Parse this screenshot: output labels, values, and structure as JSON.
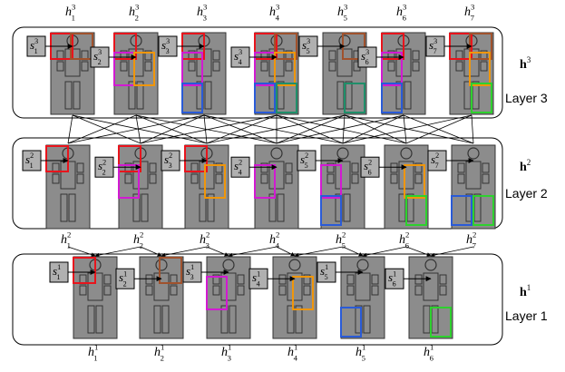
{
  "diagram": {
    "layers": [
      {
        "label": "Layer 3",
        "h_label": "h",
        "h_sup": "3",
        "nodes": [
          {
            "h": "h",
            "sub": "1",
            "sup": "3",
            "s": "s",
            "s_sub": "1",
            "s_sup": "3",
            "boxes": [
              "red",
              "brown"
            ]
          },
          {
            "h": "h",
            "sub": "2",
            "sup": "3",
            "s": "s",
            "s_sub": "2",
            "s_sup": "3",
            "boxes": [
              "red",
              "magenta",
              "orange"
            ]
          },
          {
            "h": "h",
            "sub": "3",
            "sup": "3",
            "s": "s",
            "s_sub": "3",
            "s_sup": "3",
            "boxes": [
              "red",
              "magenta",
              "blue"
            ]
          },
          {
            "h": "h",
            "sub": "4",
            "sup": "3",
            "s": "s",
            "s_sub": "4",
            "s_sup": "3",
            "boxes": [
              "red",
              "brown",
              "magenta",
              "orange",
              "blue",
              "teal"
            ]
          },
          {
            "h": "h",
            "sub": "5",
            "sup": "3",
            "s": "s",
            "s_sub": "5",
            "s_sup": "3",
            "boxes": [
              "brown",
              "teal"
            ]
          },
          {
            "h": "h",
            "sub": "6",
            "sup": "3",
            "s": "s",
            "s_sub": "6",
            "s_sup": "3",
            "boxes": [
              "red",
              "magenta",
              "blue"
            ]
          },
          {
            "h": "h",
            "sub": "7",
            "sup": "3",
            "s": "s",
            "s_sub": "7",
            "s_sup": "3",
            "boxes": [
              "red",
              "brown",
              "orange",
              "green"
            ]
          }
        ]
      },
      {
        "label": "Layer 2",
        "h_label": "h",
        "h_sup": "2",
        "nodes": [
          {
            "h": "h",
            "sub": "1",
            "sup": "2",
            "s": "s",
            "s_sub": "1",
            "s_sup": "2",
            "boxes": [
              "red"
            ]
          },
          {
            "h": "h",
            "sub": "2",
            "sup": "2",
            "s": "s",
            "s_sub": "2",
            "s_sup": "2",
            "boxes": [
              "red",
              "magenta"
            ]
          },
          {
            "h": "h",
            "sub": "3",
            "sup": "2",
            "s": "s",
            "s_sub": "3",
            "s_sup": "2",
            "boxes": [
              "red",
              "orange"
            ]
          },
          {
            "h": "h",
            "sub": "4",
            "sup": "2",
            "s": "s",
            "s_sub": "4",
            "s_sup": "2",
            "boxes": [
              "magenta"
            ]
          },
          {
            "h": "h",
            "sub": "5",
            "sup": "2",
            "s": "s",
            "s_sub": "5",
            "s_sup": "2",
            "boxes": [
              "magenta",
              "blue"
            ]
          },
          {
            "h": "h",
            "sub": "6",
            "sup": "2",
            "s": "s",
            "s_sub": "6",
            "s_sup": "2",
            "boxes": [
              "orange",
              "green"
            ]
          },
          {
            "h": "h",
            "sub": "7",
            "sup": "2",
            "s": "s",
            "s_sub": "7",
            "s_sup": "2",
            "boxes": [
              "blue",
              "green"
            ]
          }
        ]
      },
      {
        "label": "Layer 1",
        "h_label": "h",
        "h_sup": "1",
        "nodes": [
          {
            "h": "h",
            "sub": "1",
            "sup": "1",
            "s": "s",
            "s_sub": "1",
            "s_sup": "1",
            "boxes": [
              "red"
            ]
          },
          {
            "h": "h",
            "sub": "2",
            "sup": "1",
            "s": "s",
            "s_sub": "2",
            "s_sup": "1",
            "boxes": [
              "brown"
            ]
          },
          {
            "h": "h",
            "sub": "3",
            "sup": "1",
            "s": "s",
            "s_sub": "3",
            "s_sup": "1",
            "boxes": [
              "magenta"
            ]
          },
          {
            "h": "h",
            "sub": "4",
            "sup": "1",
            "s": "s",
            "s_sub": "4",
            "s_sup": "1",
            "boxes": [
              "orange"
            ]
          },
          {
            "h": "h",
            "sub": "5",
            "sup": "1",
            "s": "s",
            "s_sub": "5",
            "s_sup": "1",
            "boxes": [
              "blue"
            ]
          },
          {
            "h": "h",
            "sub": "6",
            "sup": "1",
            "s": "s",
            "s_sub": "6",
            "s_sup": "1",
            "boxes": [
              "green"
            ]
          }
        ]
      }
    ]
  },
  "colors": {
    "figure": "#8c8c8c",
    "figure_stroke": "#333333",
    "red": "#e8141c",
    "brown": "#a0522d",
    "magenta": "#d21ad2",
    "orange": "#f0960a",
    "blue": "#2a5bd7",
    "teal": "#1f8f6a",
    "green": "#2ed12e",
    "line": "#000000"
  }
}
